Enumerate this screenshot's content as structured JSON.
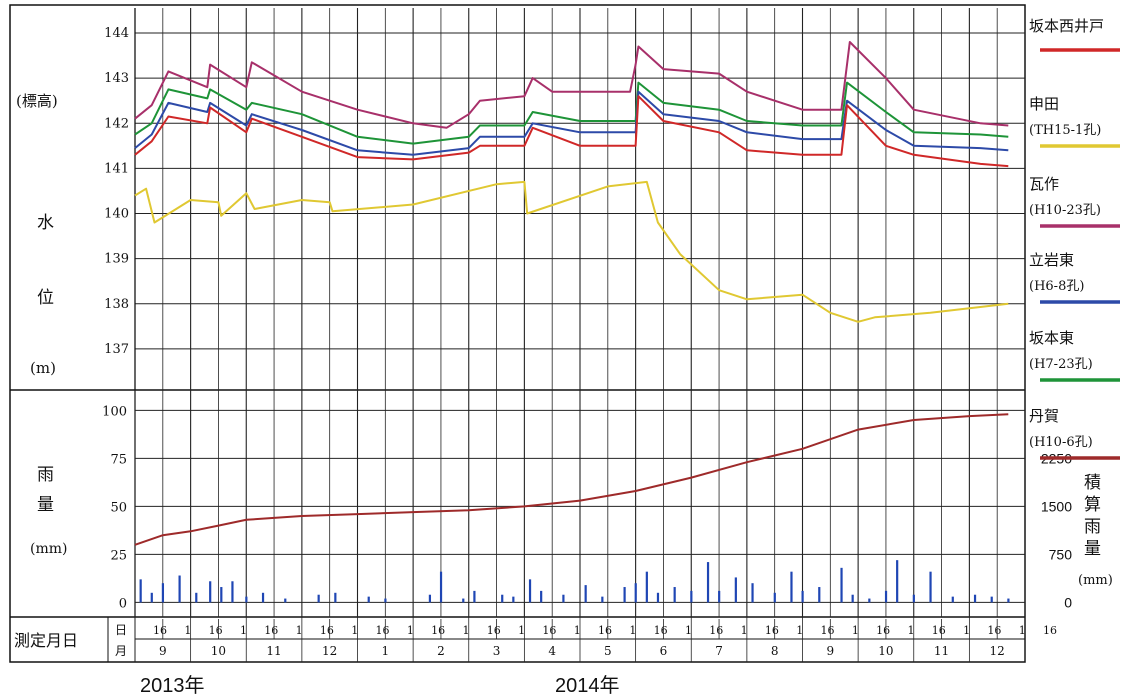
{
  "chart_data": {
    "type": "line",
    "panels": {
      "water_level": {
        "ylabel_parts": [
          "(標高)",
          "水",
          "位",
          "(m)"
        ],
        "ylim": [
          136.2,
          144
        ],
        "yticks": [
          137,
          138,
          139,
          140,
          141,
          142,
          143,
          144
        ]
      },
      "rainfall": {
        "ylabel_parts": [
          "雨",
          "量",
          "(mm)"
        ],
        "ylim": [
          -5,
          108
        ],
        "yticks": [
          0,
          25,
          50,
          75,
          100
        ],
        "y2label_chars": [
          "積",
          "算",
          "雨",
          "量",
          "(mm)"
        ],
        "y2ticks": [
          "2250",
          "1500",
          "750",
          "0"
        ]
      }
    },
    "legend": [
      {
        "name": "坂本西井戸",
        "color": "#d02828"
      },
      {
        "name": "申田",
        "sub": "(TH15-1孔)",
        "color": "#e0c832"
      },
      {
        "name": "瓦作",
        "sub": "(H10-23孔)",
        "color": "#a8306a"
      },
      {
        "name": "立岩東",
        "sub": "(H6-8孔)",
        "color": "#2d4aa8"
      },
      {
        "name": "坂本東",
        "sub": "(H7-23孔)",
        "color": "#1e9438"
      },
      {
        "name": "丹賀",
        "sub": "(H10-6孔)",
        "color": "#9e2a2a"
      }
    ],
    "x_months": [
      "9",
      "10",
      "11",
      "12",
      "1",
      "2",
      "3",
      "4",
      "5",
      "6",
      "7",
      "8",
      "9",
      "10",
      "11",
      "12"
    ],
    "x_days": [
      "16",
      "1",
      "16",
      "1",
      "16",
      "1",
      "16",
      "1",
      "16",
      "1",
      "16",
      "1",
      "16",
      "1",
      "16",
      "1",
      "16",
      "1",
      "16",
      "1",
      "16",
      "1",
      "16",
      "1",
      "16",
      "1",
      "16",
      "1",
      "16",
      "1",
      "16",
      "1",
      "16"
    ],
    "x_row_labels": {
      "measure": "測定月日",
      "day": "日",
      "month": "月"
    },
    "years": [
      "2013年",
      "2014年"
    ],
    "series": [
      {
        "name": "瓦作",
        "color": "#a8306a",
        "points": [
          [
            0,
            142.1
          ],
          [
            0.3,
            142.4
          ],
          [
            0.6,
            143.15
          ],
          [
            1.3,
            142.8
          ],
          [
            1.35,
            143.3
          ],
          [
            2,
            142.8
          ],
          [
            2.1,
            143.35
          ],
          [
            3,
            142.7
          ],
          [
            4,
            142.3
          ],
          [
            5,
            142.0
          ],
          [
            5.6,
            141.9
          ],
          [
            6,
            142.2
          ],
          [
            6.2,
            142.5
          ],
          [
            7,
            142.6
          ],
          [
            7.15,
            143.0
          ],
          [
            7.5,
            142.7
          ],
          [
            8,
            142.7
          ],
          [
            8.6,
            142.7
          ],
          [
            8.9,
            142.7
          ],
          [
            9,
            143.3
          ],
          [
            9.05,
            143.7
          ],
          [
            9.5,
            143.2
          ],
          [
            10.5,
            143.1
          ],
          [
            11,
            142.7
          ],
          [
            12,
            142.3
          ],
          [
            12.7,
            142.3
          ],
          [
            12.8,
            143.3
          ],
          [
            12.85,
            143.8
          ],
          [
            13.5,
            143.0
          ],
          [
            14,
            142.3
          ],
          [
            15.2,
            142.0
          ],
          [
            15.7,
            141.95
          ]
        ]
      },
      {
        "name": "坂本東",
        "color": "#1e9438",
        "points": [
          [
            0,
            141.75
          ],
          [
            0.3,
            142.0
          ],
          [
            0.6,
            142.75
          ],
          [
            1.3,
            142.55
          ],
          [
            1.35,
            142.75
          ],
          [
            2,
            142.3
          ],
          [
            2.1,
            142.45
          ],
          [
            3,
            142.2
          ],
          [
            4,
            141.7
          ],
          [
            5,
            141.55
          ],
          [
            6,
            141.7
          ],
          [
            6.2,
            141.95
          ],
          [
            7,
            141.95
          ],
          [
            7.15,
            142.25
          ],
          [
            8,
            142.05
          ],
          [
            9,
            142.05
          ],
          [
            9.05,
            142.9
          ],
          [
            9.5,
            142.45
          ],
          [
            10.5,
            142.3
          ],
          [
            11,
            142.05
          ],
          [
            12,
            141.95
          ],
          [
            12.7,
            141.95
          ],
          [
            12.8,
            142.9
          ],
          [
            13.5,
            142.25
          ],
          [
            14,
            141.8
          ],
          [
            15.2,
            141.75
          ],
          [
            15.7,
            141.7
          ]
        ]
      },
      {
        "name": "立岩東",
        "color": "#2d4aa8",
        "points": [
          [
            0,
            141.45
          ],
          [
            0.3,
            141.75
          ],
          [
            0.6,
            142.45
          ],
          [
            1.3,
            142.25
          ],
          [
            1.35,
            142.45
          ],
          [
            2,
            141.95
          ],
          [
            2.1,
            142.2
          ],
          [
            3,
            141.85
          ],
          [
            4,
            141.4
          ],
          [
            5,
            141.3
          ],
          [
            6,
            141.45
          ],
          [
            6.2,
            141.7
          ],
          [
            7,
            141.7
          ],
          [
            7.15,
            142.0
          ],
          [
            8,
            141.8
          ],
          [
            9,
            141.8
          ],
          [
            9.05,
            142.7
          ],
          [
            9.5,
            142.2
          ],
          [
            10.5,
            142.05
          ],
          [
            11,
            141.8
          ],
          [
            12,
            141.65
          ],
          [
            12.7,
            141.65
          ],
          [
            12.8,
            142.5
          ],
          [
            13.5,
            141.85
          ],
          [
            14,
            141.5
          ],
          [
            15.2,
            141.45
          ],
          [
            15.7,
            141.4
          ]
        ]
      },
      {
        "name": "坂本西井戸",
        "color": "#d02828",
        "points": [
          [
            0,
            141.3
          ],
          [
            0.3,
            141.6
          ],
          [
            0.6,
            142.15
          ],
          [
            1.3,
            142.0
          ],
          [
            1.35,
            142.35
          ],
          [
            2,
            141.8
          ],
          [
            2.1,
            142.1
          ],
          [
            3,
            141.7
          ],
          [
            4,
            141.25
          ],
          [
            5,
            141.2
          ],
          [
            6,
            141.35
          ],
          [
            6.2,
            141.5
          ],
          [
            7,
            141.5
          ],
          [
            7.15,
            141.9
          ],
          [
            8,
            141.5
          ],
          [
            9,
            141.5
          ],
          [
            9.05,
            142.6
          ],
          [
            9.5,
            142.05
          ],
          [
            10.5,
            141.8
          ],
          [
            11,
            141.4
          ],
          [
            12,
            141.3
          ],
          [
            12.7,
            141.3
          ],
          [
            12.8,
            142.4
          ],
          [
            13.5,
            141.5
          ],
          [
            14,
            141.3
          ],
          [
            15.2,
            141.1
          ],
          [
            15.7,
            141.05
          ]
        ]
      },
      {
        "name": "申田",
        "color": "#e0c832",
        "points": [
          [
            0,
            140.4
          ],
          [
            0.2,
            140.55
          ],
          [
            0.35,
            139.8
          ],
          [
            1.0,
            140.3
          ],
          [
            1.5,
            140.25
          ],
          [
            1.55,
            139.95
          ],
          [
            2.0,
            140.45
          ],
          [
            2.15,
            140.1
          ],
          [
            3.0,
            140.3
          ],
          [
            3.5,
            140.25
          ],
          [
            3.55,
            140.05
          ],
          [
            5.0,
            140.2
          ],
          [
            6.5,
            140.65
          ],
          [
            7.0,
            140.7
          ],
          [
            7.05,
            140.0
          ],
          [
            8.5,
            140.6
          ],
          [
            9.2,
            140.7
          ],
          [
            9.4,
            139.8
          ],
          [
            9.8,
            139.1
          ],
          [
            10.5,
            138.3
          ],
          [
            11.0,
            138.1
          ],
          [
            12.0,
            138.2
          ],
          [
            12.5,
            137.8
          ],
          [
            13.0,
            137.6
          ],
          [
            13.3,
            137.7
          ],
          [
            14.3,
            137.8
          ],
          [
            15.0,
            137.9
          ],
          [
            15.7,
            138.0
          ]
        ]
      }
    ],
    "rainfall_cumulative": {
      "name": "丹賀",
      "color": "#9e2a2a",
      "points": [
        [
          0,
          30
        ],
        [
          0.5,
          35
        ],
        [
          1,
          37
        ],
        [
          1.5,
          40
        ],
        [
          2,
          43
        ],
        [
          2.5,
          44
        ],
        [
          3,
          45
        ],
        [
          4,
          46
        ],
        [
          5,
          47
        ],
        [
          6,
          48
        ],
        [
          7,
          50
        ],
        [
          8,
          53
        ],
        [
          9,
          58
        ],
        [
          10,
          65
        ],
        [
          11,
          73
        ],
        [
          12,
          80
        ],
        [
          13,
          90
        ],
        [
          14,
          95
        ],
        [
          15,
          97
        ],
        [
          15.7,
          98
        ]
      ]
    },
    "rainfall_daily": [
      [
        0.1,
        12
      ],
      [
        0.3,
        5
      ],
      [
        0.5,
        10
      ],
      [
        0.8,
        14
      ],
      [
        1.1,
        5
      ],
      [
        1.35,
        11
      ],
      [
        1.55,
        8
      ],
      [
        1.75,
        11
      ],
      [
        2.0,
        3
      ],
      [
        2.3,
        5
      ],
      [
        2.7,
        2
      ],
      [
        3.3,
        4
      ],
      [
        3.6,
        5
      ],
      [
        4.2,
        3
      ],
      [
        4.5,
        2
      ],
      [
        5.3,
        4
      ],
      [
        5.5,
        16
      ],
      [
        5.9,
        2
      ],
      [
        6.1,
        6
      ],
      [
        6.6,
        4
      ],
      [
        6.8,
        3
      ],
      [
        7.1,
        12
      ],
      [
        7.3,
        6
      ],
      [
        7.7,
        4
      ],
      [
        8.1,
        9
      ],
      [
        8.4,
        3
      ],
      [
        8.8,
        8
      ],
      [
        9.0,
        10
      ],
      [
        9.2,
        16
      ],
      [
        9.4,
        5
      ],
      [
        9.7,
        8
      ],
      [
        10.0,
        6
      ],
      [
        10.3,
        21
      ],
      [
        10.5,
        6
      ],
      [
        10.8,
        13
      ],
      [
        11.1,
        10
      ],
      [
        11.5,
        5
      ],
      [
        11.8,
        16
      ],
      [
        12.0,
        6
      ],
      [
        12.3,
        8
      ],
      [
        12.7,
        18
      ],
      [
        12.9,
        4
      ],
      [
        13.2,
        2
      ],
      [
        13.5,
        6
      ],
      [
        13.7,
        22
      ],
      [
        14.0,
        4
      ],
      [
        14.3,
        16
      ],
      [
        14.7,
        3
      ],
      [
        15.1,
        4
      ],
      [
        15.4,
        3
      ],
      [
        15.7,
        2
      ]
    ]
  }
}
